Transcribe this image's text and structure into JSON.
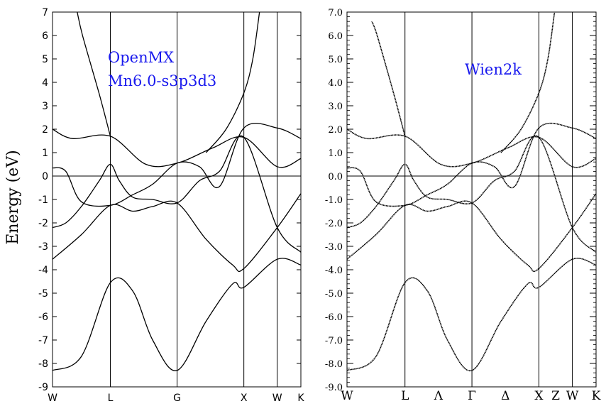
{
  "chart_data": [
    {
      "type": "line",
      "title": "",
      "ylabel": "Energy (eV)",
      "annotations": [
        "OpenMX",
        "Mn6.0-s3p3d3"
      ],
      "annotation_color": "#1a1aee",
      "ylim": [
        -9,
        7
      ],
      "yticks": [
        7,
        6,
        5,
        4,
        3,
        2,
        1,
        0,
        -1,
        -2,
        -3,
        -4,
        -5,
        -6,
        -7,
        -8,
        -9
      ],
      "ytick_labels": [
        "7",
        "6",
        "5",
        "4",
        "3",
        "2",
        "1",
        "0",
        "-1",
        "-2",
        "-3",
        "-4",
        "-5",
        "-6",
        "-7",
        "-8",
        "-9"
      ],
      "x_points": [
        0,
        0.866,
        1.866,
        2.866,
        3.366,
        3.72
      ],
      "kpoint_labels": [
        "W",
        "L",
        "G",
        "X",
        "W",
        "K"
      ],
      "vlines_at": [
        0.866,
        1.866,
        2.866,
        3.366
      ],
      "fermi_level": 0,
      "series": [
        {
          "values": [
            [
              0,
              -8.3
            ],
            [
              0.433,
              -7.7
            ],
            [
              0.866,
              -4.55
            ],
            [
              1.2,
              -4.9
            ],
            [
              1.5,
              -7.0
            ],
            [
              1.866,
              -8.3
            ],
            [
              2.3,
              -6.2
            ],
            [
              2.7,
              -4.6
            ],
            [
              2.866,
              -4.75
            ],
            [
              3.366,
              -3.55
            ],
            [
              3.72,
              -3.8
            ]
          ]
        },
        {
          "values": [
            [
              0,
              -3.55
            ],
            [
              0.433,
              -2.5
            ],
            [
              0.866,
              -1.25
            ],
            [
              1.2,
              -1.5
            ],
            [
              1.5,
              -1.3
            ],
            [
              1.866,
              -1.15
            ],
            [
              2.3,
              -2.7
            ],
            [
              2.7,
              -3.8
            ],
            [
              2.866,
              -3.95
            ],
            [
              3.366,
              -2.2
            ],
            [
              3.72,
              -0.75
            ]
          ]
        },
        {
          "values": [
            [
              0,
              -2.2
            ],
            [
              0.2,
              -2.0
            ],
            [
              0.433,
              -1.3
            ],
            [
              0.7,
              -0.2
            ],
            [
              0.866,
              0.5
            ],
            [
              1.0,
              -0.2
            ],
            [
              1.2,
              -0.9
            ],
            [
              1.5,
              -1.0
            ],
            [
              1.866,
              -1.15
            ],
            [
              2.2,
              -0.2
            ],
            [
              2.5,
              0.2
            ],
            [
              2.866,
              1.65
            ],
            [
              3.366,
              -2.2
            ],
            [
              3.72,
              -3.25
            ]
          ]
        },
        {
          "values": [
            [
              0,
              0.35
            ],
            [
              0.2,
              0.2
            ],
            [
              0.433,
              -1.1
            ],
            [
              0.866,
              -1.25
            ],
            [
              1.2,
              -0.8
            ],
            [
              1.5,
              -0.35
            ],
            [
              1.866,
              0.55
            ],
            [
              2.2,
              0.4
            ],
            [
              2.5,
              -0.45
            ],
            [
              2.866,
              2.05
            ],
            [
              3.366,
              2.05
            ],
            [
              3.72,
              1.6
            ]
          ]
        },
        {
          "values": [
            [
              0,
              2.0
            ],
            [
              0.3,
              1.6
            ],
            [
              0.866,
              1.7
            ],
            [
              1.4,
              0.5
            ],
            [
              1.866,
              0.55
            ],
            [
              2.4,
              1.2
            ],
            [
              2.866,
              1.65
            ],
            [
              3.366,
              0.4
            ],
            [
              3.72,
              0.75
            ]
          ]
        },
        {
          "values": [
            [
              0.866,
              1.7
            ],
            [
              0.7,
              3.5
            ],
            [
              0.45,
              6.0
            ],
            [
              0.37,
              7.0
            ]
          ]
        },
        {
          "values": [
            [
              2.3,
              1.0
            ],
            [
              2.6,
              2.0
            ],
            [
              2.866,
              3.55
            ],
            [
              3.0,
              5.0
            ],
            [
              3.1,
              7.0
            ]
          ]
        }
      ]
    },
    {
      "type": "line",
      "title": "",
      "ylabel": "",
      "annotations": [
        "Wien2k"
      ],
      "annotation_color": "#1a1aee",
      "ylim": [
        -9,
        7
      ],
      "yticks": [
        7,
        6,
        5,
        4,
        3,
        2,
        1,
        0,
        -1,
        -2,
        -3,
        -4,
        -5,
        -6,
        -7,
        -8,
        -9
      ],
      "ytick_labels": [
        "7.0",
        "6.0",
        "5.0",
        "4.0",
        "3.0",
        "2.0",
        "1.0",
        "0.0",
        "-1.0",
        "-2.0",
        "-3.0",
        "-4.0",
        "-5.0",
        "-6.0",
        "-7.0",
        "-8.0",
        "-9.0"
      ],
      "x_points": [
        0,
        0.866,
        1.866,
        2.866,
        3.366,
        3.72
      ],
      "kpoint_labels": [
        "W",
        "L",
        "Λ",
        "Γ",
        "Δ",
        "X",
        "Z",
        "W",
        "K"
      ],
      "kpoint_label_x": [
        0,
        0.866,
        1.366,
        1.866,
        2.366,
        2.866,
        3.116,
        3.366,
        3.72
      ],
      "vlines_at": [
        0.866,
        1.866,
        2.866,
        3.366
      ],
      "fermi_level": 0,
      "series": [
        {
          "values": [
            [
              0,
              -8.3
            ],
            [
              0.433,
              -7.7
            ],
            [
              0.866,
              -4.55
            ],
            [
              1.2,
              -4.9
            ],
            [
              1.5,
              -7.0
            ],
            [
              1.866,
              -8.3
            ],
            [
              2.3,
              -6.2
            ],
            [
              2.7,
              -4.6
            ],
            [
              2.866,
              -4.75
            ],
            [
              3.366,
              -3.55
            ],
            [
              3.72,
              -3.8
            ]
          ]
        },
        {
          "values": [
            [
              0,
              -3.55
            ],
            [
              0.433,
              -2.5
            ],
            [
              0.866,
              -1.25
            ],
            [
              1.2,
              -1.5
            ],
            [
              1.5,
              -1.3
            ],
            [
              1.866,
              -1.15
            ],
            [
              2.3,
              -2.7
            ],
            [
              2.7,
              -3.8
            ],
            [
              2.866,
              -3.95
            ],
            [
              3.366,
              -2.2
            ],
            [
              3.72,
              -0.75
            ]
          ]
        },
        {
          "values": [
            [
              0,
              -2.2
            ],
            [
              0.2,
              -2.0
            ],
            [
              0.433,
              -1.3
            ],
            [
              0.7,
              -0.2
            ],
            [
              0.866,
              0.5
            ],
            [
              1.0,
              -0.2
            ],
            [
              1.2,
              -0.9
            ],
            [
              1.5,
              -1.0
            ],
            [
              1.866,
              -1.15
            ],
            [
              2.2,
              -0.2
            ],
            [
              2.5,
              0.2
            ],
            [
              2.866,
              1.65
            ],
            [
              3.366,
              -2.2
            ],
            [
              3.72,
              -3.25
            ]
          ]
        },
        {
          "values": [
            [
              0,
              0.35
            ],
            [
              0.2,
              0.2
            ],
            [
              0.433,
              -1.1
            ],
            [
              0.866,
              -1.25
            ],
            [
              1.2,
              -0.8
            ],
            [
              1.5,
              -0.35
            ],
            [
              1.866,
              0.55
            ],
            [
              2.2,
              0.4
            ],
            [
              2.5,
              -0.45
            ],
            [
              2.866,
              2.05
            ],
            [
              3.366,
              2.05
            ],
            [
              3.72,
              1.6
            ]
          ]
        },
        {
          "values": [
            [
              0,
              2.0
            ],
            [
              0.3,
              1.6
            ],
            [
              0.866,
              1.7
            ],
            [
              1.4,
              0.5
            ],
            [
              1.866,
              0.55
            ],
            [
              2.4,
              1.2
            ],
            [
              2.866,
              1.65
            ],
            [
              3.366,
              0.4
            ],
            [
              3.72,
              0.75
            ]
          ]
        },
        {
          "values": [
            [
              0.866,
              1.7
            ],
            [
              0.7,
              3.5
            ],
            [
              0.45,
              6.0
            ],
            [
              0.37,
              6.6
            ]
          ]
        },
        {
          "values": [
            [
              2.3,
              1.0
            ],
            [
              2.6,
              2.0
            ],
            [
              2.866,
              3.55
            ],
            [
              3.0,
              5.0
            ],
            [
              3.1,
              7.0
            ]
          ]
        }
      ]
    }
  ]
}
